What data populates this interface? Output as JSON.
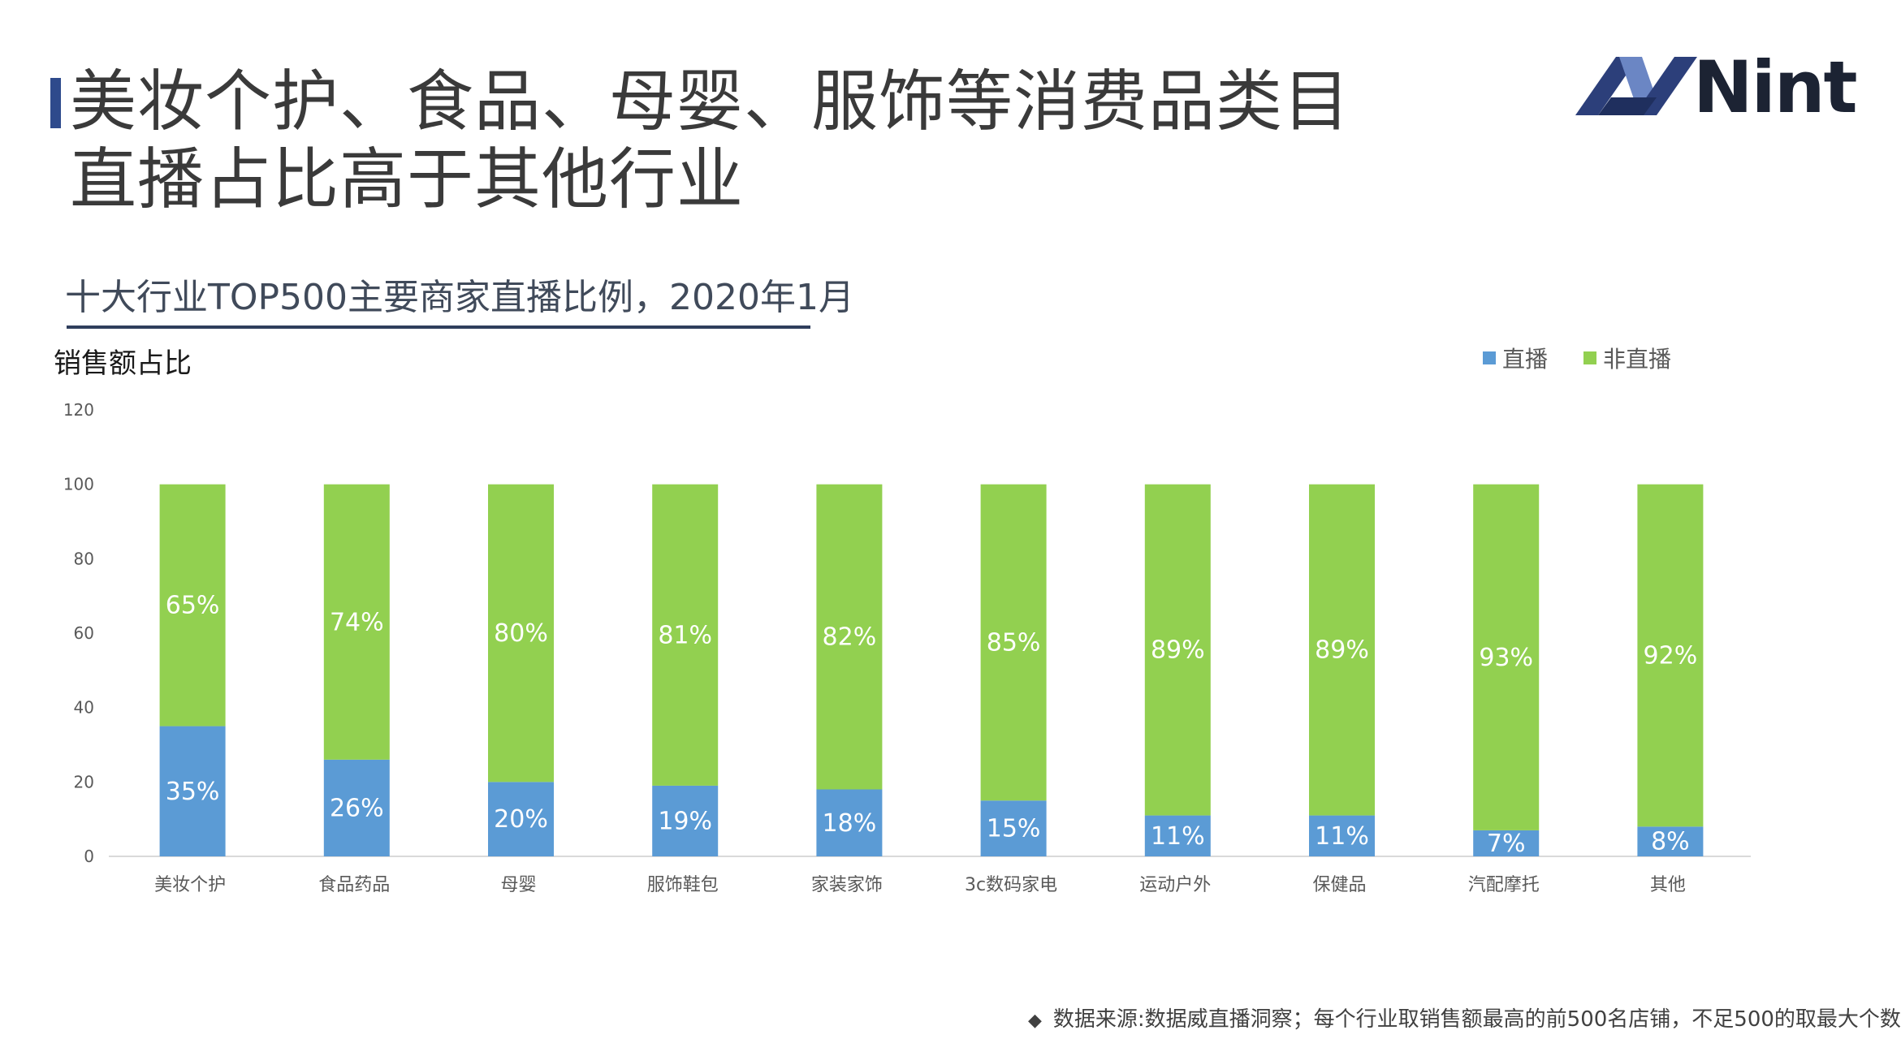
{
  "title": {
    "line1": "美妆个护、食品、母婴、服饰等消费品类目",
    "line2": "直播占比高于其他行业"
  },
  "logo": {
    "text": "Nint"
  },
  "subtitle": "十大行业TOP500主要商家直播比例，2020年1月",
  "y_axis_title": "销售额占比",
  "footnote": {
    "marker": "◆",
    "text": "数据来源:数据威直播洞察；每个行业取销售额最高的前500名店铺，不足500的取最大个数"
  },
  "colors": {
    "live": "#5b9bd5",
    "nonlive": "#92d050",
    "axis": "#d9d9d9",
    "tick_text": "#595959",
    "label_text": "#ffffff"
  },
  "chart_data": {
    "type": "bar",
    "stacked": true,
    "title": "十大行业TOP500主要商家直播比例，2020年1月",
    "ylabel": "销售额占比",
    "xlabel": "",
    "ylim": [
      0,
      120
    ],
    "yticks": [
      0,
      20,
      40,
      60,
      80,
      100,
      120
    ],
    "legend_position": "top-right",
    "categories": [
      "美妆个护",
      "食品药品",
      "母婴",
      "服饰鞋包",
      "家装家饰",
      "3c数码家电",
      "运动户外",
      "保健品",
      "汽配摩托",
      "其他"
    ],
    "series": [
      {
        "name": "直播",
        "values": [
          35,
          26,
          20,
          19,
          18,
          15,
          11,
          11,
          7,
          8
        ],
        "labels": [
          "35%",
          "26%",
          "20%",
          "19%",
          "18%",
          "15%",
          "11%",
          "11%",
          "7%",
          "8%"
        ]
      },
      {
        "name": "非直播",
        "values": [
          65,
          74,
          80,
          81,
          82,
          85,
          89,
          89,
          93,
          92
        ],
        "labels": [
          "65%",
          "74%",
          "80%",
          "81%",
          "82%",
          "85%",
          "89%",
          "89%",
          "93%",
          "92%"
        ]
      }
    ]
  }
}
